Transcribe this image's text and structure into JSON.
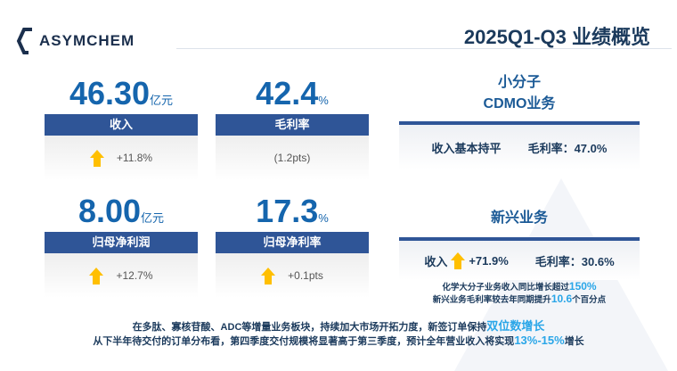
{
  "header": {
    "logo_text": "ASYMCHEM",
    "title": "2025Q1-Q3 业绩概览"
  },
  "metrics": [
    {
      "value": "46.30",
      "unit": "亿元",
      "label": "收入",
      "change": "+11.8%",
      "trend": "up"
    },
    {
      "value": "42.4",
      "unit": "%",
      "label": "毛利率",
      "change": "(1.2pts)",
      "trend": "none"
    },
    {
      "value": "8.00",
      "unit": "亿元",
      "label": "归母净利润",
      "change": "+12.7%",
      "trend": "up"
    },
    {
      "value": "17.3",
      "unit": "%",
      "label": "归母净利率",
      "change": "+0.1pts",
      "trend": "up"
    }
  ],
  "small_molecule": {
    "title_line1": "小分子",
    "title_line2": "CDMO业务",
    "revenue": "收入基本持平",
    "margin": "毛利率：47.0%"
  },
  "emerging": {
    "title": "新兴业务",
    "revenue_label": "收入",
    "revenue_change": "+71.9%",
    "margin": "毛利率：30.6%",
    "note1_text": "化学大分子业务收入同比增长超过",
    "note1_hl": "150%",
    "note2_text": "新兴业务毛利率较去年同期提升",
    "note2_hl": "10.6",
    "note2_tail": "个百分点"
  },
  "footer": {
    "line1_text": "在多肽、寡核苷酸、ADC等增量业务板块，持续加大市场开拓力度，新签订单保持",
    "line1_hl": "双位数增长",
    "line2_text": "从下半年待交付的订单分布看，第四季度交付规模将显著高于第三季度，预计全年营业收入将实现",
    "line2_hl": "13%-15%",
    "line2_tail": "增长"
  },
  "colors": {
    "brand": "#1565ad",
    "header_bar": "#2f5597",
    "arrow": "#ffbf00",
    "highlight": "#2aa6e8"
  }
}
